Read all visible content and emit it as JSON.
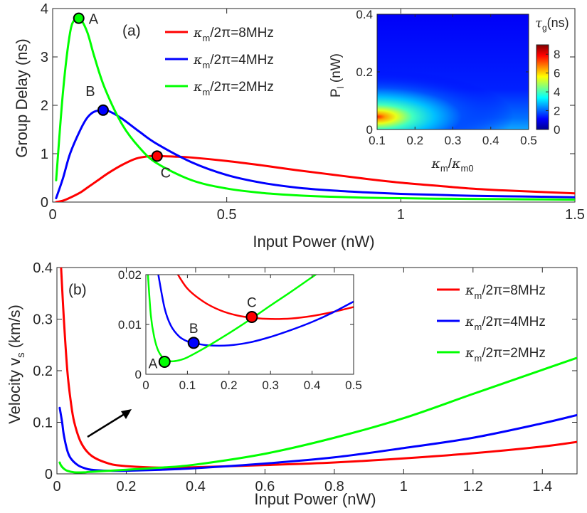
{
  "chart_data": [
    {
      "id": "a",
      "type": "line",
      "panel_label": "(a)",
      "xlabel": "Input Power (nW)",
      "ylabel": "Group Delay (ns)",
      "xlim": [
        0,
        1.5
      ],
      "ylim": [
        0,
        4
      ],
      "xticks": [
        0,
        0.5,
        1,
        1.5
      ],
      "xtick_labels": [
        "0",
        "0.5",
        "1",
        "1.5"
      ],
      "yticks": [
        0,
        1,
        2,
        3,
        4
      ],
      "ytick_labels": [
        "0",
        "1",
        "2",
        "3",
        "4"
      ],
      "legend": [
        {
          "sym": "κ",
          "sub": "m",
          "text": "/2π=8MHz",
          "color": "#ff0000"
        },
        {
          "sym": "κ",
          "sub": "m",
          "text": "/2π=4MHz",
          "color": "#0000ff"
        },
        {
          "sym": "κ",
          "sub": "m",
          "text": "/2π=2MHz",
          "color": "#00ff00"
        }
      ],
      "series": [
        {
          "name": "κm/2π=8MHz",
          "color": "#ff0000",
          "x": [
            0.01,
            0.03,
            0.05,
            0.08,
            0.1,
            0.13,
            0.16,
            0.2,
            0.24,
            0.28,
            0.3,
            0.35,
            0.4,
            0.5,
            0.6,
            0.7,
            0.8,
            0.9,
            1.0,
            1.1,
            1.2,
            1.3,
            1.4,
            1.5
          ],
          "y": [
            0.0,
            0.03,
            0.09,
            0.2,
            0.3,
            0.45,
            0.6,
            0.77,
            0.9,
            0.95,
            0.95,
            0.94,
            0.92,
            0.85,
            0.76,
            0.66,
            0.57,
            0.48,
            0.4,
            0.34,
            0.28,
            0.24,
            0.21,
            0.18
          ]
        },
        {
          "name": "κm/2π=4MHz",
          "color": "#0000ff",
          "x": [
            0.01,
            0.03,
            0.05,
            0.08,
            0.1,
            0.12,
            0.15,
            0.17,
            0.2,
            0.25,
            0.3,
            0.4,
            0.5,
            0.6,
            0.7,
            0.8,
            0.9,
            1.0,
            1.1,
            1.2,
            1.3,
            1.4,
            1.5
          ],
          "y": [
            0.08,
            0.5,
            1.0,
            1.5,
            1.75,
            1.87,
            1.9,
            1.85,
            1.72,
            1.45,
            1.2,
            0.82,
            0.56,
            0.4,
            0.3,
            0.24,
            0.2,
            0.17,
            0.15,
            0.13,
            0.12,
            0.11,
            0.1
          ],
          "highlight_marker": "x1"
        },
        {
          "name": "κm/2π=2MHz",
          "color": "#00ff00",
          "x": [
            0.01,
            0.03,
            0.05,
            0.065,
            0.08,
            0.1,
            0.12,
            0.15,
            0.2,
            0.25,
            0.3,
            0.4,
            0.5,
            0.6,
            0.7,
            0.8,
            0.9,
            1.0,
            1.1,
            1.2,
            1.3,
            1.4,
            1.5
          ],
          "y": [
            0.45,
            2.3,
            3.5,
            3.78,
            3.78,
            3.5,
            3.0,
            2.35,
            1.6,
            1.12,
            0.8,
            0.45,
            0.28,
            0.19,
            0.14,
            0.11,
            0.09,
            0.08,
            0.07,
            0.065,
            0.06,
            0.055,
            0.05
          ]
        }
      ],
      "markers": [
        {
          "label": "A",
          "x": 0.075,
          "y": 3.8,
          "color": "#00ff00",
          "label_pos": "right"
        },
        {
          "label": "B",
          "x": 0.145,
          "y": 1.9,
          "color": "#0000ff",
          "label_pos": "upper-left"
        },
        {
          "label": "C",
          "x": 0.3,
          "y": 0.95,
          "color": "#ff0000",
          "label_pos": "below-right"
        }
      ],
      "inset": {
        "type": "heatmap",
        "xlabel": {
          "sym": "κ",
          "sub": "m",
          "mid": "/",
          "sym2": "κ",
          "sub2": "m0"
        },
        "ylabel": {
          "base": "P",
          "sub": "l",
          "tail": " (nW)"
        },
        "xlim": [
          0.1,
          0.5
        ],
        "ylim": [
          0,
          0.4
        ],
        "xticks": [
          0.1,
          0.2,
          0.3,
          0.4,
          0.5
        ],
        "xtick_labels": [
          "0.1",
          "0.2",
          "0.3",
          "0.4",
          "0.5"
        ],
        "yticks": [
          0,
          0.2,
          0.4
        ],
        "ytick_labels": [
          "0",
          "0.2",
          "0.4"
        ],
        "colorbar": {
          "title": {
            "sym": "τ",
            "sub": "g",
            "tail": "(ns)"
          },
          "range": [
            0,
            9
          ],
          "ticks": [
            0,
            2,
            4,
            6,
            8
          ],
          "tick_labels": [
            "0",
            "2",
            "4",
            "6",
            "8"
          ]
        },
        "peak": {
          "x": 0.1,
          "y": 0.03,
          "value": 9
        }
      }
    },
    {
      "id": "b",
      "type": "line",
      "panel_label": "(b)",
      "xlabel": "Input Power (nW)",
      "ylabel": {
        "base": "Velocity v",
        "sub": "s",
        "tail": " (km/s)"
      },
      "xlim": [
        0,
        1.5
      ],
      "ylim": [
        0,
        0.4
      ],
      "xticks": [
        0,
        0.2,
        0.4,
        0.6,
        0.8,
        1,
        1.2,
        1.4
      ],
      "xtick_labels": [
        "0",
        "0.2",
        "0.4",
        "0.6",
        "0.8",
        "1",
        "1.2",
        "1.4"
      ],
      "yticks": [
        0,
        0.1,
        0.2,
        0.3,
        0.4
      ],
      "ytick_labels": [
        "0",
        "0.1",
        "0.2",
        "0.3",
        "0.4"
      ],
      "legend": [
        {
          "sym": "κ",
          "sub": "m",
          "text": "/2π=8MHz",
          "color": "#ff0000"
        },
        {
          "sym": "κ",
          "sub": "m",
          "text": "/2π=4MHz",
          "color": "#0000ff"
        },
        {
          "sym": "κ",
          "sub": "m",
          "text": "/2π=2MHz",
          "color": "#00ff00"
        }
      ],
      "series": [
        {
          "name": "κm/2π=8MHz",
          "color": "#ff0000",
          "x": [
            0.012,
            0.02,
            0.03,
            0.04,
            0.05,
            0.07,
            0.1,
            0.15,
            0.2,
            0.3,
            0.4,
            0.6,
            0.8,
            1.0,
            1.2,
            1.4,
            1.5
          ],
          "y": [
            0.4,
            0.3,
            0.2,
            0.14,
            0.1,
            0.06,
            0.035,
            0.02,
            0.015,
            0.012,
            0.013,
            0.017,
            0.022,
            0.03,
            0.04,
            0.053,
            0.062
          ]
        },
        {
          "name": "κm/2π=4MHz",
          "color": "#0000ff",
          "x": [
            0.008,
            0.015,
            0.02,
            0.03,
            0.04,
            0.06,
            0.08,
            0.1,
            0.15,
            0.2,
            0.3,
            0.4,
            0.6,
            0.8,
            1.0,
            1.2,
            1.4,
            1.5
          ],
          "y": [
            0.128,
            0.1,
            0.075,
            0.045,
            0.03,
            0.017,
            0.011,
            0.008,
            0.006,
            0.006,
            0.008,
            0.011,
            0.02,
            0.032,
            0.05,
            0.07,
            0.098,
            0.114
          ]
        },
        {
          "name": "κm/2π=2MHz",
          "color": "#00ff00",
          "x": [
            0.008,
            0.012,
            0.02,
            0.03,
            0.05,
            0.08,
            0.1,
            0.2,
            0.3,
            0.4,
            0.6,
            0.8,
            1.0,
            1.2,
            1.38,
            1.5
          ],
          "y": [
            0.022,
            0.016,
            0.01,
            0.006,
            0.003,
            0.003,
            0.004,
            0.008,
            0.012,
            0.018,
            0.039,
            0.07,
            0.108,
            0.155,
            0.197,
            0.225
          ]
        }
      ],
      "inset": {
        "xlim": [
          0,
          0.5
        ],
        "ylim": [
          0,
          0.02
        ],
        "xticks": [
          0,
          0.1,
          0.2,
          0.3,
          0.4,
          0.5
        ],
        "xtick_labels": [
          "0",
          "0.1",
          "0.2",
          "0.3",
          "0.4",
          "0.5"
        ],
        "yticks": [
          0,
          0.01,
          0.02
        ],
        "ytick_labels": [
          "0",
          "0.01",
          "0.02"
        ],
        "markers": [
          {
            "label": "A",
            "x": 0.045,
            "y": 0.0025,
            "color": "#00ff00",
            "label_pos": "left"
          },
          {
            "label": "B",
            "x": 0.115,
            "y": 0.0063,
            "color": "#0000ff",
            "label_pos": "above"
          },
          {
            "label": "C",
            "x": 0.255,
            "y": 0.0115,
            "color": "#ff0000",
            "label_pos": "above"
          }
        ]
      }
    }
  ]
}
